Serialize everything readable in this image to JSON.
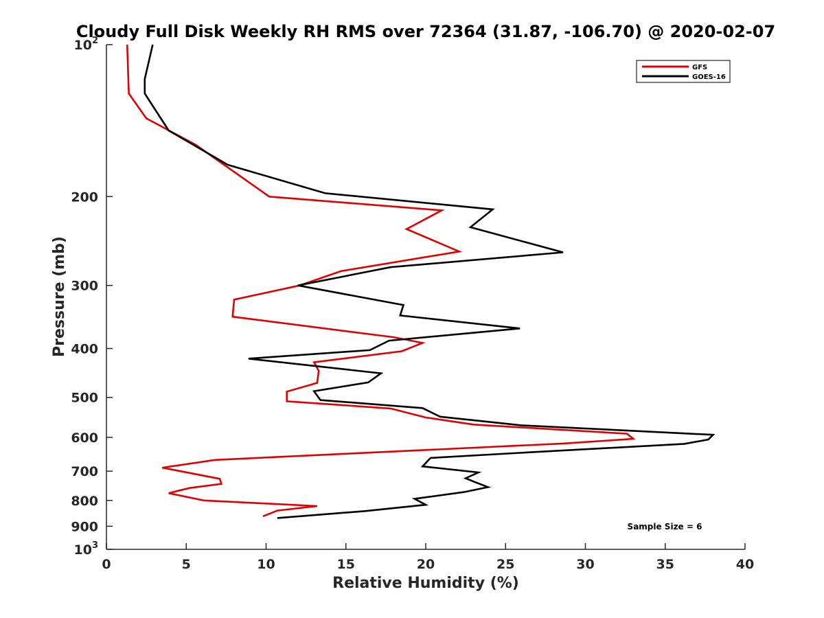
{
  "chart_data": {
    "type": "line",
    "title": "Cloudy Full Disk Weekly RH RMS over 72364 (31.87, -106.70) @ 2020-02-07",
    "xlabel": "Relative Humidity (%)",
    "ylabel": "Pressure (mb)",
    "xlim": [
      0,
      40
    ],
    "ylim": [
      100,
      1000
    ],
    "y_scale": "log",
    "y_reversed": true,
    "grid": false,
    "legend_position": "top-right",
    "x_ticks": [
      {
        "value": 0,
        "label": "0"
      },
      {
        "value": 5,
        "label": "5"
      },
      {
        "value": 10,
        "label": "10"
      },
      {
        "value": 15,
        "label": "15"
      },
      {
        "value": 20,
        "label": "20"
      },
      {
        "value": 25,
        "label": "25"
      },
      {
        "value": 30,
        "label": "30"
      },
      {
        "value": 35,
        "label": "35"
      },
      {
        "value": 40,
        "label": "40"
      }
    ],
    "y_ticks": [
      {
        "value": 100,
        "label": "10",
        "sup": "2"
      },
      {
        "value": 200,
        "label": "200"
      },
      {
        "value": 300,
        "label": "300"
      },
      {
        "value": 400,
        "label": "400"
      },
      {
        "value": 500,
        "label": "500"
      },
      {
        "value": 600,
        "label": "600"
      },
      {
        "value": 700,
        "label": "700"
      },
      {
        "value": 800,
        "label": "800"
      },
      {
        "value": 900,
        "label": "900"
      },
      {
        "value": 1000,
        "label": "10",
        "sup": "3"
      }
    ],
    "annotation": "Sample Size = 6",
    "series": [
      {
        "name": "GFS",
        "color": "#e00000",
        "points": [
          [
            1.3,
            100
          ],
          [
            1.4,
            125
          ],
          [
            2.5,
            140
          ],
          [
            5.6,
            158
          ],
          [
            10.2,
            200
          ],
          [
            21.0,
            213
          ],
          [
            18.8,
            232
          ],
          [
            22.1,
            257
          ],
          [
            14.7,
            281
          ],
          [
            12.1,
            300
          ],
          [
            8.0,
            320
          ],
          [
            7.9,
            346
          ],
          [
            18.0,
            380
          ],
          [
            19.8,
            390
          ],
          [
            18.5,
            405
          ],
          [
            13.0,
            426
          ],
          [
            13.3,
            443
          ],
          [
            13.2,
            468
          ],
          [
            11.3,
            487
          ],
          [
            11.3,
            509
          ],
          [
            17.8,
            526
          ],
          [
            20.0,
            548
          ],
          [
            23.0,
            566
          ],
          [
            32.6,
            590
          ],
          [
            33.0,
            604
          ],
          [
            28.6,
            617
          ],
          [
            6.8,
            665
          ],
          [
            3.5,
            689
          ],
          [
            7.1,
            725
          ],
          [
            7.2,
            742
          ],
          [
            5.2,
            756
          ],
          [
            3.9,
            774
          ],
          [
            6.1,
            800
          ],
          [
            13.2,
            821
          ],
          [
            10.7,
            838
          ],
          [
            9.8,
            860
          ]
        ]
      },
      {
        "name": "GOES-16",
        "color": "#000000",
        "points": [
          [
            2.9,
            100
          ],
          [
            2.4,
            117
          ],
          [
            2.4,
            125
          ],
          [
            3.9,
            148
          ],
          [
            7.6,
            173
          ],
          [
            13.7,
            197
          ],
          [
            24.2,
            212
          ],
          [
            22.8,
            230
          ],
          [
            28.6,
            258
          ],
          [
            17.8,
            276
          ],
          [
            12.0,
            300
          ],
          [
            18.6,
            328
          ],
          [
            18.4,
            344
          ],
          [
            25.9,
            365
          ],
          [
            17.7,
            386
          ],
          [
            16.5,
            403
          ],
          [
            8.9,
            419
          ],
          [
            17.2,
            448
          ],
          [
            16.4,
            467
          ],
          [
            13.0,
            486
          ],
          [
            13.4,
            506
          ],
          [
            19.8,
            525
          ],
          [
            20.9,
            546
          ],
          [
            26.0,
            568
          ],
          [
            38.0,
            593
          ],
          [
            37.7,
            606
          ],
          [
            36.2,
            618
          ],
          [
            25.9,
            644
          ],
          [
            20.3,
            659
          ],
          [
            19.8,
            685
          ],
          [
            23.3,
            704
          ],
          [
            22.5,
            723
          ],
          [
            23.0,
            734
          ],
          [
            23.9,
            753
          ],
          [
            22.4,
            770
          ],
          [
            19.3,
            794
          ],
          [
            20.0,
            816
          ],
          [
            16.2,
            840
          ],
          [
            10.7,
            867
          ]
        ]
      }
    ]
  }
}
